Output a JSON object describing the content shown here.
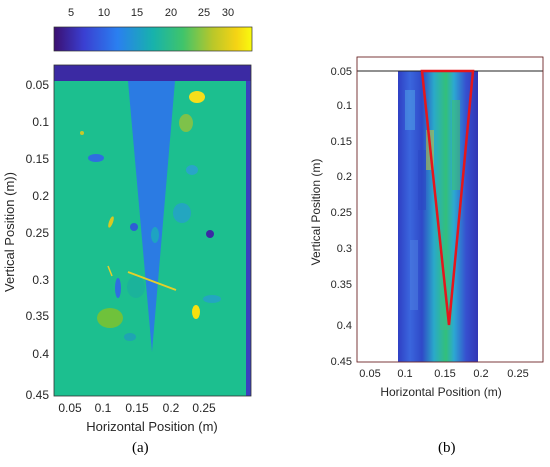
{
  "colorbar": {
    "ticks": [
      "5",
      "10",
      "15",
      "20",
      "25",
      "30"
    ],
    "gradient": [
      "#3b0f70",
      "#3a3fd1",
      "#2a7ff0",
      "#17b2ac",
      "#3fc46b",
      "#b8c72a",
      "#f5d314",
      "#f9fb0e"
    ]
  },
  "panel_a": {
    "xlabel": "Horizontal Position (m)",
    "ylabel": "Vertical Position (m))",
    "xticks": [
      "0.05",
      "0.1",
      "0.15",
      "0.2",
      "0.25"
    ],
    "yticks": [
      "0.05",
      "0.1",
      "0.15",
      "0.2",
      "0.25",
      "0.3",
      "0.35",
      "0.4",
      "0.45"
    ],
    "caption": "(a)",
    "field_color": "#1cbf8f",
    "cone_color": "#2b7be3",
    "band_color": "#3b2aa3"
  },
  "panel_b": {
    "xlabel": "Horizontal Position (m)",
    "ylabel": "Vertical Position (m)",
    "xticks": [
      "0.05",
      "0.1",
      "0.15",
      "0.2",
      "0.25"
    ],
    "yticks": [
      "0.05",
      "0.1",
      "0.15",
      "0.2",
      "0.25",
      "0.3",
      "0.35",
      "0.4",
      "0.45"
    ],
    "caption": "(b)",
    "outline_color": "#e4161c",
    "image_base_color": "#3b3fbf"
  }
}
